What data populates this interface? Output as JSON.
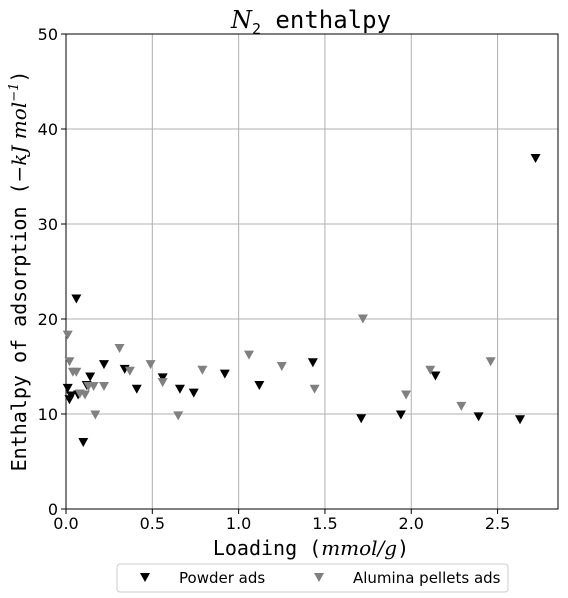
{
  "chart_data": {
    "type": "scatter",
    "title_main": "N",
    "title_sub": "2",
    "title_rest": " enthalpy",
    "xlabel_prefix": "Loading (",
    "xlabel_unit": "mmol/g",
    "xlabel_suffix": ")",
    "ylabel_prefix": "Enthalpy of adsorption (",
    "ylabel_unit": "−kJ mol",
    "ylabel_exp": "−1",
    "ylabel_suffix": ")",
    "xlim": [
      0,
      2.85
    ],
    "ylim": [
      0,
      50
    ],
    "x_ticks": [
      0.0,
      0.5,
      1.0,
      1.5,
      2.0,
      2.5
    ],
    "x_tick_labels": [
      "0.0",
      "0.5",
      "1.0",
      "1.5",
      "2.0",
      "2.5"
    ],
    "y_ticks": [
      0,
      10,
      20,
      30,
      40,
      50
    ],
    "y_tick_labels": [
      "0",
      "10",
      "20",
      "30",
      "40",
      "50"
    ],
    "grid": true,
    "legend_position": "bottom-center-outside",
    "series": [
      {
        "name": "Powder ads",
        "color": "#000000",
        "marker": "triangle-down",
        "points": [
          [
            0.01,
            12.7
          ],
          [
            0.02,
            11.5
          ],
          [
            0.03,
            11.9
          ],
          [
            0.06,
            22.1
          ],
          [
            0.07,
            12.0
          ],
          [
            0.1,
            7.0
          ],
          [
            0.12,
            13.0
          ],
          [
            0.14,
            13.9
          ],
          [
            0.22,
            15.2
          ],
          [
            0.34,
            14.7
          ],
          [
            0.41,
            12.6
          ],
          [
            0.56,
            13.8
          ],
          [
            0.66,
            12.6
          ],
          [
            0.74,
            12.2
          ],
          [
            0.92,
            14.2
          ],
          [
            1.12,
            13.0
          ],
          [
            1.43,
            15.4
          ],
          [
            1.71,
            9.5
          ],
          [
            1.94,
            9.9
          ],
          [
            2.14,
            14.0
          ],
          [
            2.39,
            9.7
          ],
          [
            2.63,
            9.4
          ],
          [
            2.72,
            36.9
          ]
        ]
      },
      {
        "name": "Alumina pellets ads",
        "color": "#808080",
        "marker": "triangle-down",
        "points": [
          [
            0.01,
            18.3
          ],
          [
            0.02,
            15.5
          ],
          [
            0.04,
            14.4
          ],
          [
            0.06,
            14.4
          ],
          [
            0.08,
            12.1
          ],
          [
            0.11,
            12.0
          ],
          [
            0.13,
            12.9
          ],
          [
            0.16,
            12.9
          ],
          [
            0.17,
            9.9
          ],
          [
            0.22,
            12.9
          ],
          [
            0.31,
            16.9
          ],
          [
            0.37,
            14.5
          ],
          [
            0.49,
            15.2
          ],
          [
            0.56,
            13.3
          ],
          [
            0.65,
            9.8
          ],
          [
            0.79,
            14.6
          ],
          [
            1.06,
            16.2
          ],
          [
            1.25,
            15.0
          ],
          [
            1.44,
            12.6
          ],
          [
            1.72,
            20.0
          ],
          [
            1.97,
            12.0
          ],
          [
            2.11,
            14.6
          ],
          [
            2.29,
            10.8
          ],
          [
            2.46,
            15.5
          ]
        ]
      }
    ]
  }
}
